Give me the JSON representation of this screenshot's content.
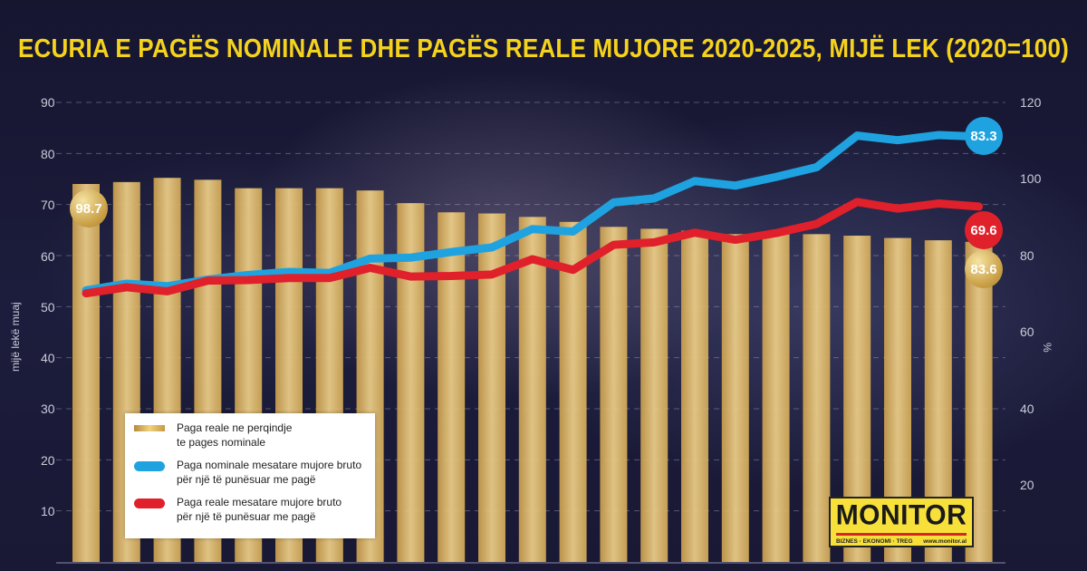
{
  "title": "ECURIA E PAGËS NOMINALE DHE PAGËS REALE MUJORE 2020-2025, MIJË LEK (2020=100)",
  "axes": {
    "left": {
      "title": "mijë lekë muaj",
      "ticks": [
        "90",
        "80",
        "70",
        "60",
        "50",
        "40",
        "30",
        "20",
        "10"
      ]
    },
    "right": {
      "title": "%",
      "ticks": [
        "120",
        "100",
        "80",
        "60",
        "40",
        "20"
      ]
    }
  },
  "legend": {
    "bar_label_line1": "Paga reale ne perqindje",
    "bar_label_line2": "te pages nominale",
    "blue_label_line1": "Paga nominale mesatare mujore bruto",
    "blue_label_line2": "për një të punësuar me pagë",
    "red_label_line1": "Paga reale mesatare mujore bruto",
    "red_label_line2": "për një të punësuar me pagë"
  },
  "badges": {
    "bar_first": "98.7",
    "bar_last": "83.6",
    "nominal_last": "83.3",
    "real_last": "69.6"
  },
  "logo": {
    "name": "MONITOR",
    "tagline": "BIZNES · EKONOMI · TREG",
    "url": "www.monitor.al"
  },
  "colors": {
    "title": "#f5d31c",
    "nominal": "#1fa3e0",
    "real": "#e0202a",
    "bar": "#e8c678",
    "background": "#1a1a35"
  },
  "chart_data": {
    "type": "bar+line",
    "title": "ECURIA E PAGËS NOMINALE DHE PAGËS REALE MUJORE 2020-2025, MIJË LEK (2020=100)",
    "xlabel": "",
    "ylabel_left": "mijë lekë muaj",
    "ylabel_right": "%",
    "ylim_left": [
      0,
      90
    ],
    "ylim_right": [
      0,
      120
    ],
    "grid": true,
    "legend_position": "lower-left",
    "categories_count": 23,
    "series": [
      {
        "name": "Paga reale ne perqindje te pages nominale",
        "type": "bar",
        "axis": "right",
        "values": [
          98.7,
          99.2,
          100.3,
          99.8,
          97.6,
          97.6,
          97.6,
          97.0,
          93.7,
          91.3,
          91.0,
          90.1,
          88.8,
          87.5,
          87.0,
          86.5,
          85.6,
          85.6,
          85.6,
          85.2,
          84.6,
          84.0,
          83.6
        ]
      },
      {
        "name": "Paga nominale mesatare mujore bruto për një të punësuar me pagë",
        "type": "line",
        "axis": "left",
        "values": [
          53.2,
          54.5,
          54.0,
          55.3,
          56.2,
          56.8,
          56.6,
          59.4,
          59.6,
          60.7,
          61.6,
          65.2,
          64.7,
          70.4,
          71.2,
          74.6,
          73.7,
          75.4,
          77.3,
          83.5,
          82.6,
          83.6,
          83.3
        ]
      },
      {
        "name": "Paga reale mesatare mujore bruto për një të punësuar me pagë",
        "type": "line",
        "axis": "left",
        "values": [
          52.6,
          53.8,
          53.0,
          55.1,
          55.2,
          55.6,
          55.6,
          57.6,
          55.9,
          56.0,
          56.3,
          59.3,
          57.2,
          62.1,
          62.6,
          64.5,
          63.1,
          64.4,
          66.2,
          70.5,
          69.2,
          70.2,
          69.6
        ]
      }
    ],
    "annotations": [
      "98.7",
      "83.6",
      "83.3",
      "69.6"
    ]
  }
}
